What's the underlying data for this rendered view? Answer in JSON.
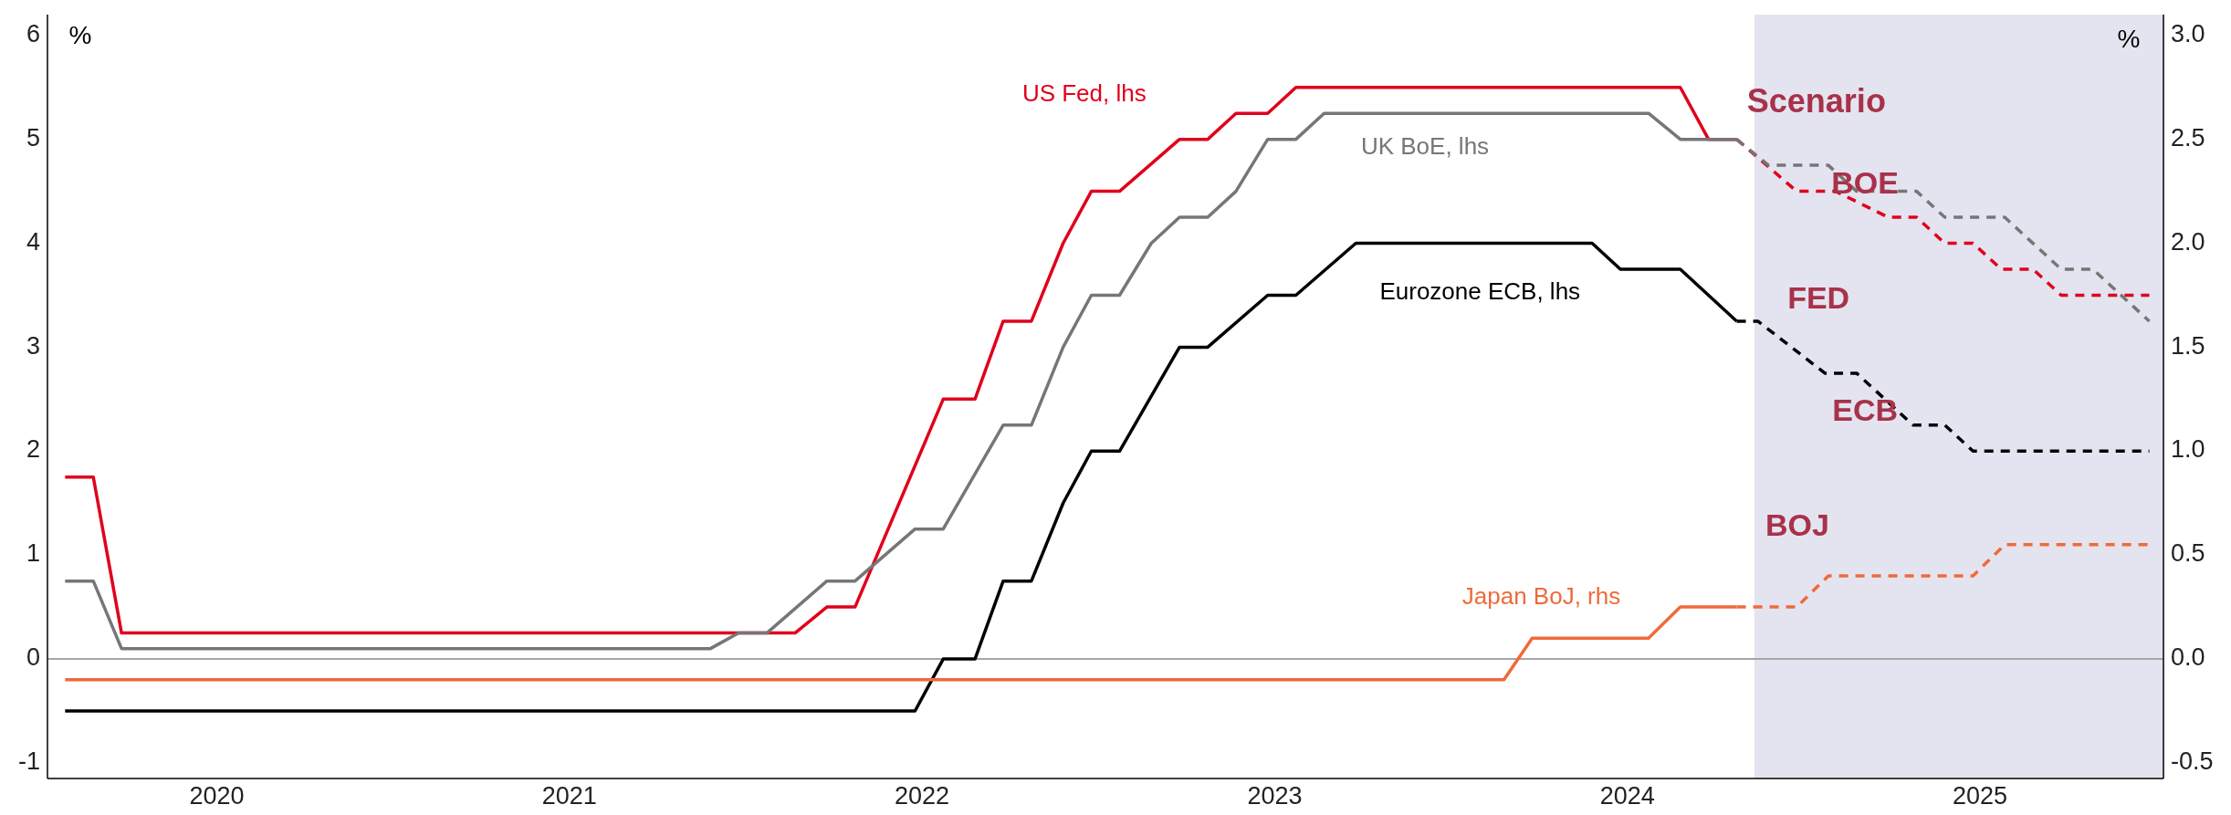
{
  "chart_data": {
    "type": "line",
    "ylabel": "%",
    "y2label": "%",
    "xlim": [
      2019.52,
      2025.52
    ],
    "xticks": [
      {
        "value": 2020,
        "label": "2020"
      },
      {
        "value": 2021,
        "label": "2021"
      },
      {
        "value": 2022,
        "label": "2022"
      },
      {
        "value": 2023,
        "label": "2023"
      },
      {
        "value": 2024,
        "label": "2024"
      },
      {
        "value": 2025,
        "label": "2025"
      }
    ],
    "ylim": [
      -1.15,
      6.2
    ],
    "yticks": [
      -1,
      0,
      1,
      2,
      3,
      4,
      5,
      6
    ],
    "y2lim": [
      -0.575,
      3.1
    ],
    "y2ticks": [
      {
        "value": -0.5,
        "label": "-0.5"
      },
      {
        "value": 0,
        "label": "0.0"
      },
      {
        "value": 0.5,
        "label": "0.5"
      },
      {
        "value": 1,
        "label": "1.0"
      },
      {
        "value": 1.5,
        "label": "1.5"
      },
      {
        "value": 2,
        "label": "2.0"
      },
      {
        "value": 2.5,
        "label": "2.5"
      },
      {
        "value": 3,
        "label": "3.0"
      }
    ],
    "grid": false,
    "series": [
      {
        "name": "US Fed, lhs",
        "color": "#e0001b",
        "line_style": "solid",
        "x": [
          2019.57,
          2019.65,
          2019.73,
          2021.64,
          2021.73,
          2021.81,
          2022.06,
          2022.15,
          2022.23,
          2022.31,
          2022.4,
          2022.48,
          2022.56,
          2022.73,
          2022.81,
          2022.89,
          2022.98,
          2023.06,
          2024.15,
          2024.23,
          2024.31
        ],
        "values": [
          1.75,
          1.75,
          0.25,
          0.25,
          0.5,
          0.5,
          2.5,
          2.5,
          3.25,
          3.25,
          4.0,
          4.5,
          4.5,
          5.0,
          5.0,
          5.25,
          5.25,
          5.5,
          5.5,
          5.0,
          5.0
        ]
      },
      {
        "name": "UK BoE, lhs",
        "color": "#767676",
        "line_style": "solid",
        "x": [
          2019.57,
          2019.65,
          2019.73,
          2021.4,
          2021.48,
          2021.56,
          2021.73,
          2021.81,
          2021.98,
          2022.06,
          2022.23,
          2022.31,
          2022.4,
          2022.48,
          2022.56,
          2022.65,
          2022.73,
          2022.81,
          2022.89,
          2022.98,
          2023.06,
          2023.14,
          2024.06,
          2024.15,
          2024.31
        ],
        "values": [
          0.75,
          0.75,
          0.1,
          0.1,
          0.25,
          0.25,
          0.75,
          0.75,
          1.25,
          1.25,
          2.25,
          2.25,
          3.0,
          3.5,
          3.5,
          4.0,
          4.25,
          4.25,
          4.5,
          5.0,
          5.0,
          5.25,
          5.25,
          5.0,
          5.0
        ]
      },
      {
        "name": "Eurozone ECB, lhs",
        "color": "#000000",
        "line_style": "solid",
        "x": [
          2019.57,
          2021.98,
          2022.06,
          2022.15,
          2022.23,
          2022.31,
          2022.4,
          2022.48,
          2022.56,
          2022.73,
          2022.81,
          2022.98,
          2023.06,
          2023.23,
          2023.9,
          2023.98,
          2024.15,
          2024.31
        ],
        "values": [
          -0.5,
          -0.5,
          0,
          0,
          0.75,
          0.75,
          1.5,
          2.0,
          2.0,
          3.0,
          3.0,
          3.5,
          3.5,
          4.0,
          4.0,
          3.75,
          3.75,
          3.25
        ]
      },
      {
        "name": "Japan BoJ, rhs",
        "color": "#ef6a3a",
        "line_style": "solid",
        "axis": "y2",
        "x": [
          2019.57,
          2023.65,
          2023.73,
          2024.06,
          2024.15,
          2024.31
        ],
        "values": [
          -0.1,
          -0.1,
          0.1,
          0.1,
          0.25,
          0.25
        ]
      },
      {
        "color": "#e0001b",
        "line_style": "dashed",
        "x": [
          2024.31,
          2024.48,
          2024.59,
          2024.74,
          2024.82,
          2024.9,
          2024.98,
          2025.06,
          2025.15,
          2025.23,
          2025.48
        ],
        "values": [
          5.0,
          4.5,
          4.5,
          4.25,
          4.25,
          4.0,
          4.0,
          3.75,
          3.75,
          3.5,
          3.5
        ]
      },
      {
        "color": "#767676",
        "line_style": "dashed",
        "x": [
          2024.31,
          2024.4,
          2024.57,
          2024.65,
          2024.82,
          2024.9,
          2025.07,
          2025.23,
          2025.32,
          2025.48
        ],
        "values": [
          5.0,
          4.75,
          4.75,
          4.5,
          4.5,
          4.25,
          4.25,
          3.75,
          3.75,
          3.25
        ]
      },
      {
        "color": "#000000",
        "line_style": "dashed",
        "x": [
          2024.31,
          2024.37,
          2024.56,
          2024.65,
          2024.81,
          2024.9,
          2024.98,
          2025.48
        ],
        "values": [
          3.25,
          3.25,
          2.75,
          2.75,
          2.25,
          2.25,
          2.0,
          2.0
        ]
      },
      {
        "color": "#ef6a3a",
        "line_style": "dashed",
        "axis": "y2",
        "x": [
          2024.31,
          2024.48,
          2024.57,
          2024.98,
          2025.07,
          2025.48
        ],
        "values": [
          0.25,
          0.25,
          0.4,
          0.4,
          0.55,
          0.55
        ]
      }
    ],
    "ref_lines": [
      {
        "axis": "y",
        "value": 0,
        "color": "#a6a6a6"
      }
    ],
    "bands": [
      {
        "axis": "x",
        "from": 2024.36,
        "to": 2025.52,
        "color": "#e4e4f0"
      }
    ],
    "annotations": [
      "Scenario",
      "BOE",
      "FED",
      "ECB",
      "BOJ"
    ]
  }
}
